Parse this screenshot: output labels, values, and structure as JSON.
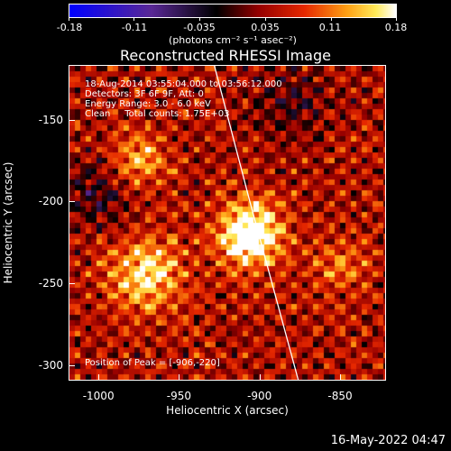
{
  "colorbar": {
    "ticks": [
      "-0.18",
      "-0.11",
      "-0.035",
      "0.035",
      "0.11",
      "0.18"
    ],
    "units": "(photons cm⁻² s⁻¹ asec⁻²)",
    "colors": {
      "low": "#0000ff",
      "mid": "#000000",
      "high": "#ffffff"
    }
  },
  "chart_data": {
    "type": "heatmap",
    "title": "Reconstructed RHESSI Image",
    "xlabel": "Heliocentric X (arcsec)",
    "ylabel": "Heliocentric Y (arcsec)",
    "xlim": [
      -1018,
      -822
    ],
    "ylim": [
      -309,
      -117
    ],
    "xticks": [
      "-1000",
      "-950",
      "-900",
      "-850"
    ],
    "yticks": [
      "-150",
      "-200",
      "-250",
      "-300"
    ],
    "zlim": [
      -0.18,
      0.18
    ],
    "limb_points": [
      [
        -928,
        -117
      ],
      [
        -906,
        -200
      ],
      [
        -876,
        -309
      ]
    ],
    "sources": [
      {
        "x": -906,
        "y": -220,
        "intensity": 0.18,
        "width": 14
      },
      {
        "x": -970,
        "y": -245,
        "intensity": 0.12,
        "width": 16
      },
      {
        "x": -975,
        "y": -175,
        "intensity": 0.09,
        "width": 12
      },
      {
        "x": -850,
        "y": -240,
        "intensity": 0.06,
        "width": 12
      },
      {
        "x": -1000,
        "y": -195,
        "intensity": -0.06,
        "width": 14
      },
      {
        "x": -880,
        "y": -140,
        "intensity": -0.05,
        "width": 16
      }
    ]
  },
  "annotations": {
    "time_range": "18-Aug-2014 03:55:04.000 to 03:56:12.000",
    "detectors": "Detectors: 3F 6F 9F, Att: 0",
    "energy_range": "Energy Range: 3.0 - 6.0 keV",
    "clean_counts": "Clean     Total counts: 1.75E+03",
    "peak_position": "Position of Peak = [-906,-220]"
  },
  "footer": {
    "timestamp": "16-May-2022 04:47"
  }
}
